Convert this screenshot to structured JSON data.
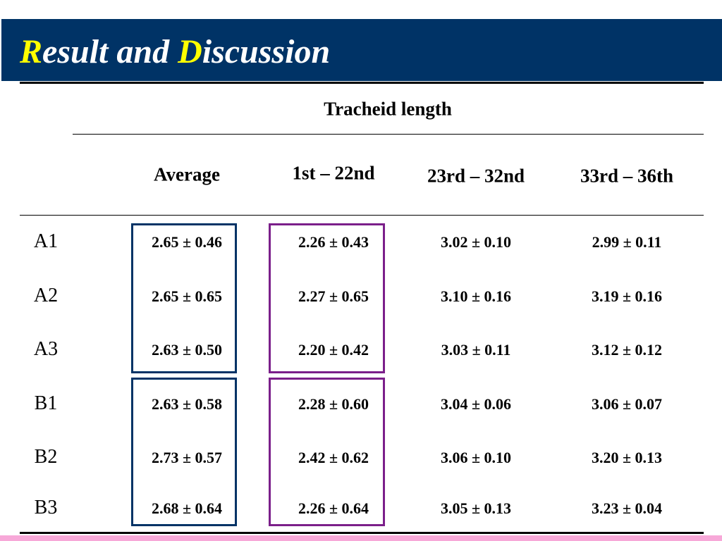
{
  "header": {
    "title_segments": [
      {
        "text": "R",
        "color": "#ffff00"
      },
      {
        "text": "esult and ",
        "color": "#ffffff"
      },
      {
        "text": "D",
        "color": "#ffff00"
      },
      {
        "text": "iscussion",
        "color": "#ffffff"
      }
    ]
  },
  "table": {
    "group_header": "Tracheid length",
    "columns": [
      "Average",
      "1st – 22nd",
      "23rd – 32nd",
      "33rd – 36th"
    ],
    "rows": [
      {
        "label": "A1",
        "cells": [
          "2.65 ± 0.46",
          "2.26 ± 0.43",
          "3.02 ± 0.10",
          "2.99 ± 0.11"
        ]
      },
      {
        "label": "A2",
        "cells": [
          "2.65 ± 0.65",
          "2.27 ± 0.65",
          "3.10 ± 0.16",
          "3.19 ± 0.16"
        ]
      },
      {
        "label": "A3",
        "cells": [
          "2.63 ± 0.50",
          "2.20 ± 0.42",
          "3.03 ± 0.11",
          "3.12 ± 0.12"
        ]
      },
      {
        "label": "B1",
        "cells": [
          "2.63 ± 0.58",
          "2.28 ± 0.60",
          "3.04 ± 0.06",
          "3.06 ± 0.07"
        ]
      },
      {
        "label": "B2",
        "cells": [
          "2.73 ± 0.57",
          "2.42 ± 0.62",
          "3.06 ± 0.10",
          "3.20 ± 0.13"
        ]
      },
      {
        "label": "B3",
        "cells": [
          "2.68 ± 0.64",
          "2.26 ± 0.64",
          "3.05 ± 0.13",
          "3.23 ± 0.04"
        ]
      }
    ]
  }
}
